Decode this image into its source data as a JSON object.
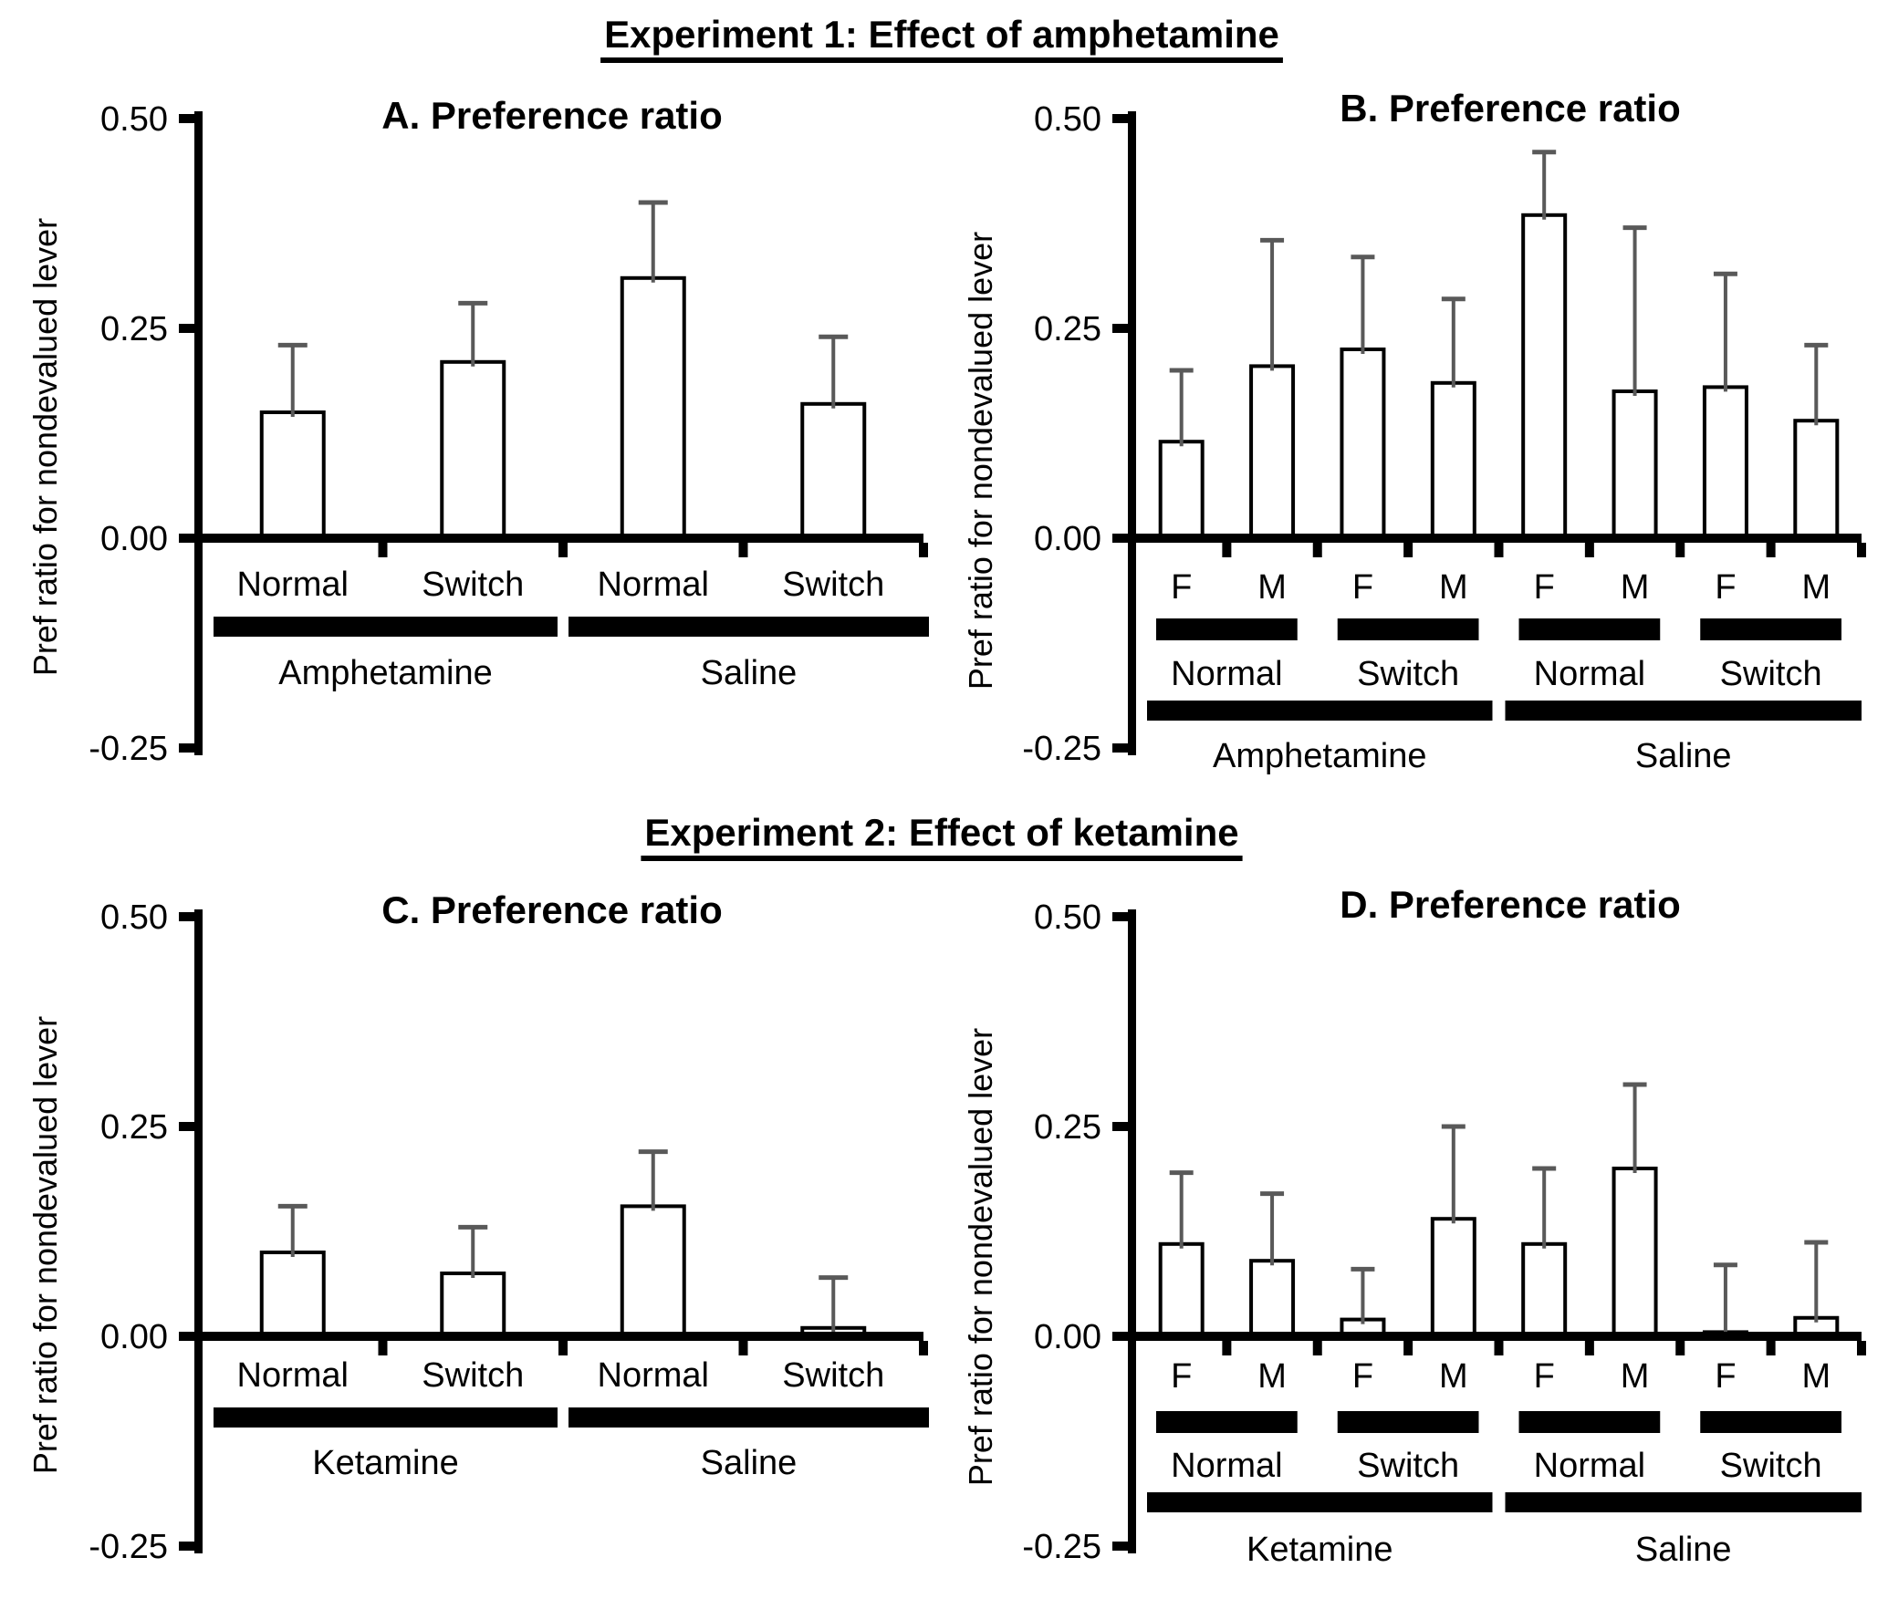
{
  "section1_title": "Experiment 1: Effect of amphetamine",
  "section2_title": "Experiment 2: Effect of ketamine",
  "chart_data": [
    {
      "id": "A",
      "type": "bar",
      "title": "A. Preference ratio",
      "ylabel": "Pref ratio for nondevalued lever",
      "ylim": [
        -0.25,
        0.5
      ],
      "yticks": [
        0.5,
        0.25,
        0,
        -0.25
      ],
      "ytick_labels": [
        "0.50",
        "0.25",
        "0.00",
        "-0.25"
      ],
      "categories": [
        "Normal",
        "Switch",
        "Normal",
        "Switch"
      ],
      "groups": [
        "Amphetamine",
        "Saline"
      ],
      "values": [
        0.15,
        0.21,
        0.31,
        0.16
      ],
      "errors_upper": [
        0.08,
        0.07,
        0.09,
        0.08
      ],
      "grid": false,
      "legend": false,
      "bar_fill": "#ffffff",
      "bar_edge": "#000000",
      "error_color": "#595959"
    },
    {
      "id": "B",
      "type": "bar",
      "title": "B. Preference ratio",
      "ylabel": "Pref ratio for nondevalued lever",
      "ylim": [
        -0.25,
        0.5
      ],
      "yticks": [
        0.5,
        0.25,
        0,
        -0.25
      ],
      "ytick_labels": [
        "0.50",
        "0.25",
        "0.00",
        "-0.25"
      ],
      "sex_labels": [
        "F",
        "M",
        "F",
        "M",
        "F",
        "M",
        "F",
        "M"
      ],
      "condition_labels": [
        "Normal",
        "Switch",
        "Normal",
        "Switch"
      ],
      "groups": [
        "Amphetamine",
        "Saline"
      ],
      "values": [
        0.115,
        0.205,
        0.225,
        0.185,
        0.385,
        0.175,
        0.18,
        0.14
      ],
      "errors_upper": [
        0.085,
        0.15,
        0.11,
        0.1,
        0.075,
        0.195,
        0.135,
        0.09
      ],
      "grid": false,
      "legend": false,
      "bar_fill": "#ffffff",
      "bar_edge": "#000000",
      "error_color": "#595959"
    },
    {
      "id": "C",
      "type": "bar",
      "title": "C. Preference ratio",
      "ylabel": "Pref ratio for nondevalued lever",
      "ylim": [
        -0.25,
        0.5
      ],
      "yticks": [
        0.5,
        0.25,
        0,
        -0.25
      ],
      "ytick_labels": [
        "0.50",
        "0.25",
        "0.00",
        "-0.25"
      ],
      "categories": [
        "Normal",
        "Switch",
        "Normal",
        "Switch"
      ],
      "groups": [
        "Ketamine",
        "Saline"
      ],
      "values": [
        0.1,
        0.075,
        0.155,
        0.01
      ],
      "errors_upper": [
        0.055,
        0.055,
        0.065,
        0.06
      ],
      "grid": false,
      "legend": false,
      "bar_fill": "#ffffff",
      "bar_edge": "#000000",
      "error_color": "#595959"
    },
    {
      "id": "D",
      "type": "bar",
      "title": "D. Preference ratio",
      "ylabel": "Pref ratio for nondevalued lever",
      "ylim": [
        -0.25,
        0.5
      ],
      "yticks": [
        0.5,
        0.25,
        0,
        -0.25
      ],
      "ytick_labels": [
        "0.50",
        "0.25",
        "0.00",
        "-0.25"
      ],
      "sex_labels": [
        "F",
        "M",
        "F",
        "M",
        "F",
        "M",
        "F",
        "M"
      ],
      "condition_labels": [
        "Normal",
        "Switch",
        "Normal",
        "Switch"
      ],
      "groups": [
        "Ketamine",
        "Saline"
      ],
      "values": [
        0.11,
        0.09,
        0.02,
        0.14,
        0.11,
        0.2,
        0.005,
        0.022
      ],
      "errors_upper": [
        0.085,
        0.08,
        0.06,
        0.11,
        0.09,
        0.1,
        0.08,
        0.09
      ],
      "grid": false,
      "legend": false,
      "bar_fill": "#ffffff",
      "bar_edge": "#000000",
      "error_color": "#595959"
    }
  ]
}
